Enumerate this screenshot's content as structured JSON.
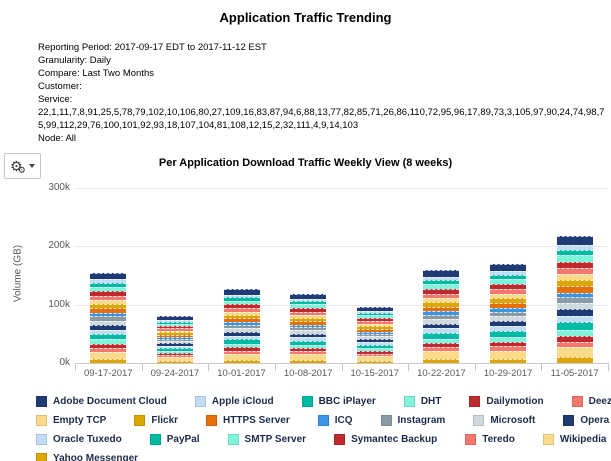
{
  "page": {
    "title": "Application Traffic Trending"
  },
  "report_info": {
    "reporting_period": "Reporting Period: 2017-09-17 EDT to 2017-11-12 EST",
    "granularity": "Granularity: Daily",
    "compare": "Compare: Last Two Months",
    "customer": "Customer:",
    "service_label": "Service:",
    "service_values": "22,1,11,7,8,91,25,5,78,79,102,10,106,80,27,109,16,83,87,94,6,88,13,77,82,85,71,26,86,110,72,95,96,17,89,73,3,105,97,90,24,74,98,75,99,112,29,76,100,101,92,93,18,107,104,81,108,12,15,2,32,111,4,9,14,103",
    "node": "Node: All"
  },
  "toolbar": {
    "gear_icon": "⚙",
    "gear_icon_small": "⚙"
  },
  "chart_data": {
    "type": "bar",
    "stacked": true,
    "title": "Per Application Download Traffic Weekly View (8 weeks)",
    "xlabel": "",
    "ylabel": "Volume (GB)",
    "units": "thousands of GB",
    "ylim_k": [
      0,
      300
    ],
    "y_ticks": [
      "0k",
      "100k",
      "200k",
      "300k"
    ],
    "y_tick_values_k": [
      0,
      100,
      200,
      300
    ],
    "grid": true,
    "legend_position": "bottom",
    "categories": [
      "09-17-2017",
      "09-24-2017",
      "10-01-2017",
      "10-08-2017",
      "10-15-2017",
      "10-22-2017",
      "10-29-2017",
      "11-05-2017"
    ],
    "totals_k": [
      155,
      80,
      126,
      119,
      97,
      160,
      170,
      218
    ],
    "series": [
      {
        "name": "Adobe Document Cloud",
        "color": "#1F3B73",
        "values": [
          11.5,
          5.9,
          9.3,
          8.8,
          7.2,
          11.8,
          12.6,
          16.1
        ]
      },
      {
        "name": "Apple iCloud",
        "color": "#C2DCF5",
        "values": [
          5.7,
          2.9,
          4.6,
          4.3,
          3.5,
          5.8,
          6.2,
          8.0
        ]
      },
      {
        "name": "BBC iPlayer",
        "color": "#00BBA4",
        "values": [
          6.8,
          3.5,
          5.5,
          5.2,
          4.2,
          7.0,
          7.4,
          9.5
        ]
      },
      {
        "name": "DHT",
        "color": "#7FF6DC",
        "values": [
          8.0,
          4.1,
          6.5,
          6.1,
          5.0,
          8.2,
          8.7,
          11.2
        ]
      },
      {
        "name": "Dailymotion",
        "color": "#BF2A2E",
        "values": [
          8.0,
          4.1,
          6.5,
          6.1,
          5.0,
          8.2,
          8.7,
          11.2
        ]
      },
      {
        "name": "Deezer",
        "color": "#F5776E",
        "values": [
          7.3,
          3.8,
          6.0,
          5.6,
          4.6,
          7.6,
          8.1,
          10.3
        ]
      },
      {
        "name": "Empty TCP",
        "color": "#FBDA8C",
        "values": [
          6.3,
          3.2,
          5.1,
          4.8,
          3.9,
          6.5,
          6.9,
          8.8
        ]
      },
      {
        "name": "Flickr",
        "color": "#DCA702",
        "values": [
          8.0,
          4.1,
          6.5,
          6.1,
          5.0,
          8.2,
          8.7,
          11.2
        ]
      },
      {
        "name": "HTTPS Server",
        "color": "#E56F08",
        "values": [
          8.0,
          4.1,
          6.5,
          6.1,
          5.0,
          8.2,
          8.7,
          11.2
        ]
      },
      {
        "name": "ICQ",
        "color": "#3A95E4",
        "values": [
          5.7,
          2.9,
          4.6,
          4.3,
          3.5,
          5.8,
          6.2,
          8.0
        ]
      },
      {
        "name": "Instagram",
        "color": "#8A9BA8",
        "values": [
          7.3,
          3.8,
          6.0,
          5.6,
          4.6,
          7.6,
          8.1,
          10.3
        ]
      },
      {
        "name": "Microsoft",
        "color": "#CFD9DE",
        "values": [
          7.3,
          3.8,
          6.0,
          5.6,
          4.6,
          7.6,
          8.1,
          10.3
        ]
      },
      {
        "name": "Opera Mini",
        "color": "#1F3B73",
        "values": [
          8.0,
          4.1,
          6.5,
          6.1,
          5.0,
          8.2,
          8.7,
          11.2
        ]
      },
      {
        "name": "Oracle Tuxedo",
        "color": "#C2DCF5",
        "values": [
          7.3,
          3.8,
          6.0,
          5.6,
          4.6,
          7.6,
          8.1,
          10.3
        ]
      },
      {
        "name": "PayPal",
        "color": "#00BBA4",
        "values": [
          9.6,
          5.0,
          7.8,
          7.4,
          6.0,
          10.0,
          10.6,
          13.6
        ]
      },
      {
        "name": "SMTP Server",
        "color": "#7FF6DC",
        "values": [
          7.3,
          3.8,
          6.0,
          5.6,
          4.6,
          7.6,
          8.1,
          10.3
        ]
      },
      {
        "name": "Symantec Backup",
        "color": "#BF2A2E",
        "values": [
          7.3,
          3.8,
          6.0,
          5.6,
          4.6,
          7.6,
          8.1,
          10.3
        ]
      },
      {
        "name": "Teredo",
        "color": "#F5776E",
        "values": [
          6.8,
          3.5,
          5.5,
          5.2,
          4.2,
          7.0,
          7.4,
          9.5
        ]
      },
      {
        "name": "Wikipedia",
        "color": "#FBDA8C",
        "values": [
          12.4,
          6.4,
          10.1,
          9.5,
          7.8,
          12.8,
          13.6,
          17.5
        ]
      },
      {
        "name": "Yahoo Messenger",
        "color": "#DCA702",
        "values": [
          6.8,
          3.5,
          5.5,
          5.2,
          4.2,
          7.0,
          7.4,
          9.5
        ]
      }
    ]
  },
  "legend": {
    "rows": [
      [
        "Adobe Document Cloud",
        "Apple iCloud",
        "BBC iPlayer",
        "DHT",
        "Dailymotion",
        "Deezer"
      ],
      [
        "Empty TCP",
        "Flickr",
        "HTTPS Server",
        "ICQ",
        "Instagram",
        "Microsoft",
        "Opera Mini"
      ],
      [
        "Oracle Tuxedo",
        "PayPal",
        "SMTP Server",
        "Symantec Backup",
        "Teredo",
        "Wikipedia"
      ],
      [
        "Yahoo Messenger"
      ]
    ]
  }
}
